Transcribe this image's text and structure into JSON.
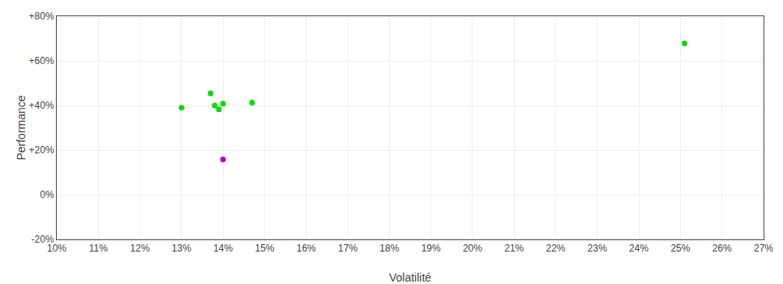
{
  "chart_data": {
    "type": "scatter",
    "xlabel": "Volatilité",
    "ylabel": "Performance",
    "series": [
      {
        "color": "#00dd00",
        "x": [
          0.13,
          0.137,
          0.138,
          0.139,
          0.14,
          0.147,
          0.251
        ],
        "values": [
          0.39,
          0.455,
          0.4,
          0.383,
          0.408,
          0.413,
          0.678
        ]
      },
      {
        "color": "#bb00bb",
        "x": [
          0.14
        ],
        "values": [
          0.158
        ]
      }
    ],
    "xlim": [
      0.1,
      0.27
    ],
    "ylim": [
      -0.2,
      0.8
    ],
    "xticks": [
      {
        "value": 0.1,
        "label": "10%"
      },
      {
        "value": 0.11,
        "label": "11%"
      },
      {
        "value": 0.12,
        "label": "12%"
      },
      {
        "value": 0.13,
        "label": "13%"
      },
      {
        "value": 0.14,
        "label": "14%"
      },
      {
        "value": 0.15,
        "label": "15%"
      },
      {
        "value": 0.16,
        "label": "16%"
      },
      {
        "value": 0.17,
        "label": "17%"
      },
      {
        "value": 0.18,
        "label": "18%"
      },
      {
        "value": 0.19,
        "label": "19%"
      },
      {
        "value": 0.2,
        "label": "20%"
      },
      {
        "value": 0.21,
        "label": "21%"
      },
      {
        "value": 0.22,
        "label": "22%"
      },
      {
        "value": 0.23,
        "label": "23%"
      },
      {
        "value": 0.24,
        "label": "24%"
      },
      {
        "value": 0.25,
        "label": "25%"
      },
      {
        "value": 0.26,
        "label": "26%"
      },
      {
        "value": 0.27,
        "label": "27%"
      }
    ],
    "yticks": [
      {
        "value": -0.2,
        "label": "-20%"
      },
      {
        "value": 0.0,
        "label": "0%"
      },
      {
        "value": 0.2,
        "label": "+20%"
      },
      {
        "value": 0.4,
        "label": "+40%"
      },
      {
        "value": 0.6,
        "label": "+60%"
      },
      {
        "value": 0.8,
        "label": "+80%"
      }
    ],
    "grid": true
  }
}
